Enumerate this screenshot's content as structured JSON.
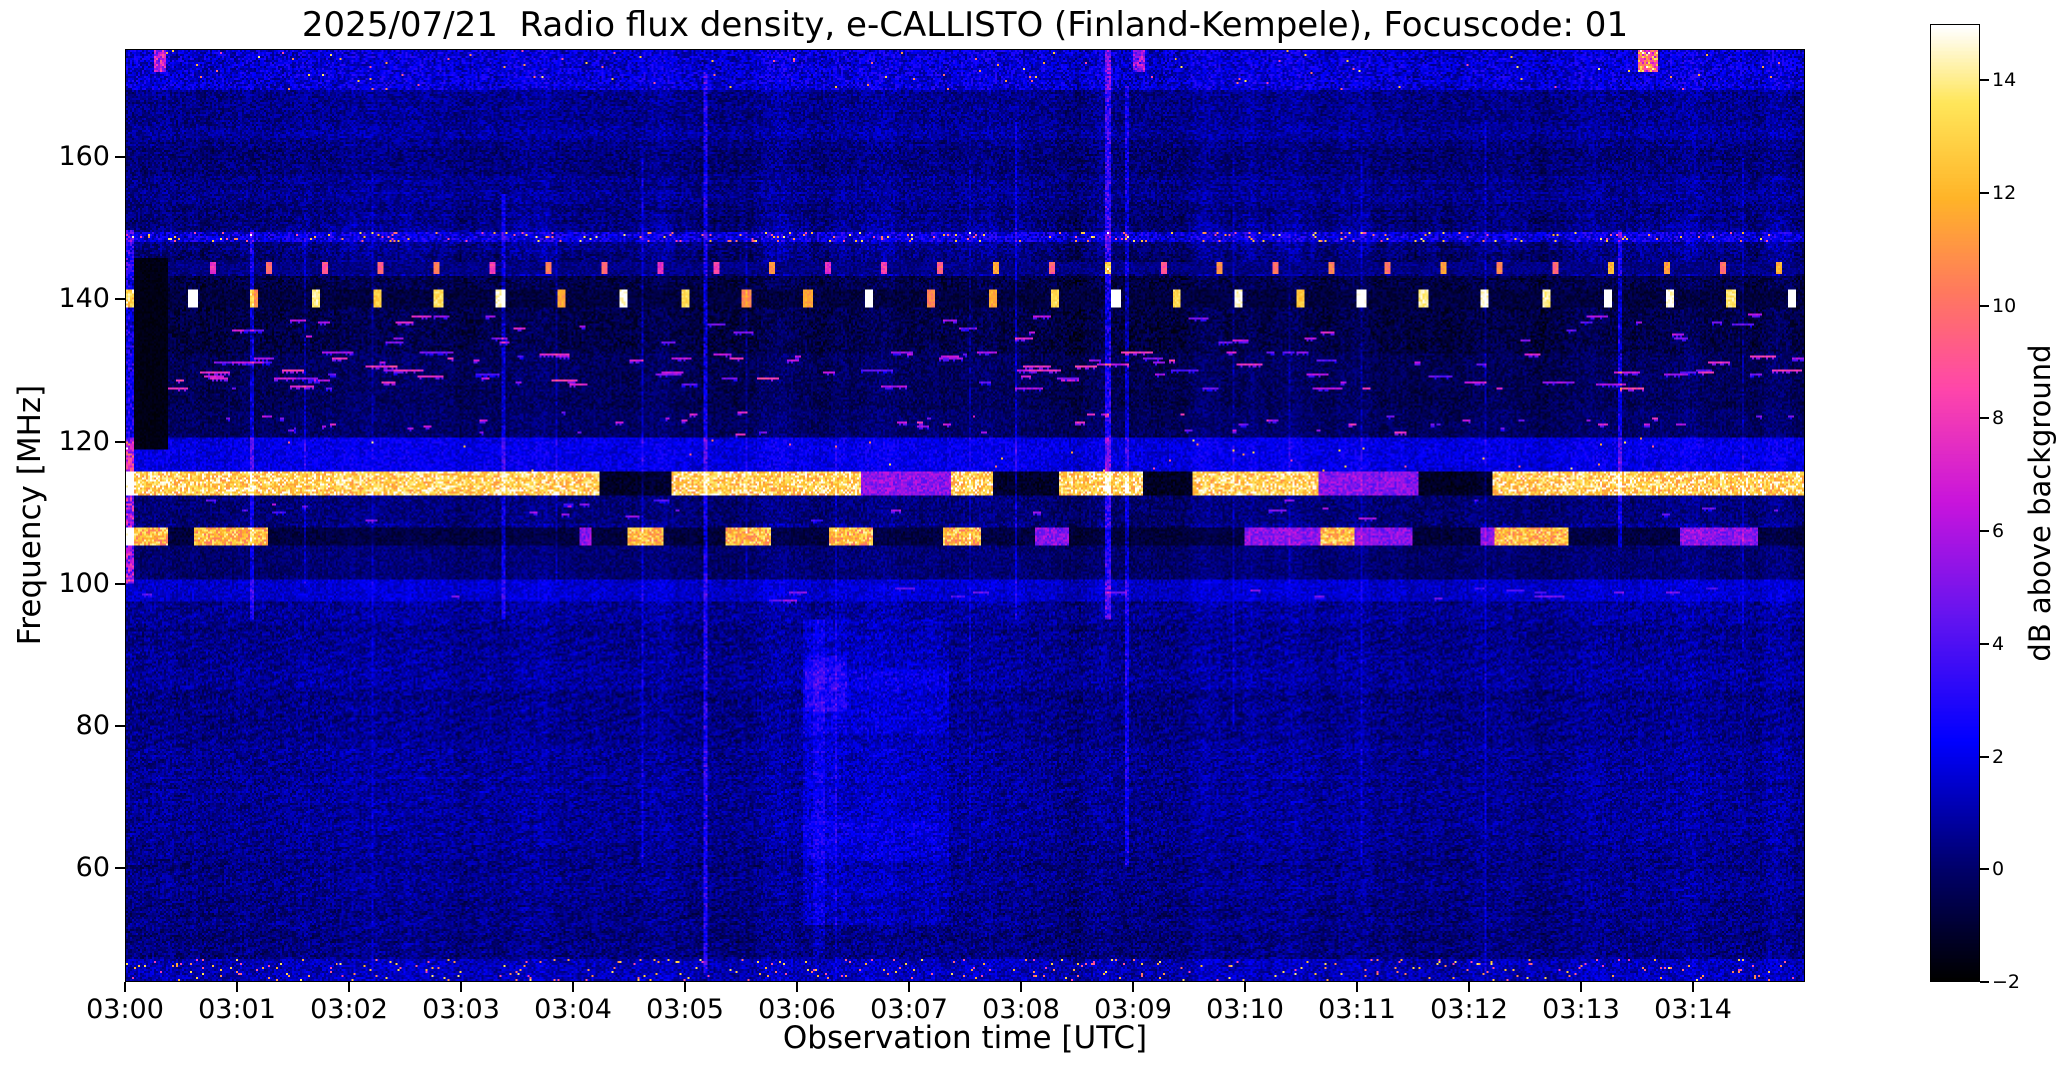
{
  "chart_data": {
    "type": "heatmap",
    "title": "2025/07/21  Radio flux density, e-CALLISTO (Finland-Kempele), Focuscode: 01",
    "xlabel": "Observation time [UTC]",
    "ylabel": "Frequency [MHz]",
    "colorbar_label": "dB above background",
    "x_ticks": [
      "03:00",
      "03:01",
      "03:02",
      "03:03",
      "03:04",
      "03:05",
      "03:06",
      "03:07",
      "03:08",
      "03:09",
      "03:10",
      "03:11",
      "03:12",
      "03:13",
      "03:14"
    ],
    "x_range_minutes": [
      0,
      15
    ],
    "y_ticks": [
      160,
      140,
      120,
      100,
      80,
      60
    ],
    "freq_range": [
      44,
      175.2
    ],
    "value_range": [
      -2,
      15
    ],
    "colorbar_ticks": [
      14,
      12,
      10,
      8,
      6,
      4,
      2,
      0,
      -2
    ],
    "colormap": [
      [
        0.0,
        "#000000"
      ],
      [
        0.12,
        "#00006e"
      ],
      [
        0.25,
        "#0000ff"
      ],
      [
        0.38,
        "#6414f0"
      ],
      [
        0.5,
        "#c814dc"
      ],
      [
        0.62,
        "#ff46aa"
      ],
      [
        0.72,
        "#ff785f"
      ],
      [
        0.82,
        "#ffb428"
      ],
      [
        0.92,
        "#ffe65a"
      ],
      [
        1.0,
        "#ffffff"
      ]
    ],
    "colors": {
      "figure_background": "#ffffff",
      "text": "#000000"
    },
    "background": {
      "level": -0.4,
      "noise_amp": 1.9
    },
    "rfi_bands": [
      {
        "f0": 169.5,
        "f1": 175.2,
        "mode": "noise",
        "level": 1.3,
        "amp": 2.8,
        "spark": 0.006
      },
      {
        "f0": 148.2,
        "f1": 149.6,
        "mode": "noise",
        "level": 1.5,
        "amp": 3.0,
        "spark": 0.05
      },
      {
        "f0": 143.6,
        "f1": 145.3,
        "mode": "periodic",
        "period": 0.5,
        "duty": 0.08,
        "phase": 0.25,
        "hi": 9,
        "lo": 0.3
      },
      {
        "f0": 132.5,
        "f1": 143.5,
        "mode": "dark",
        "level": -0.6,
        "amp": 1.8
      },
      {
        "f0": 138.9,
        "f1": 141.3,
        "mode": "periodic",
        "period": 0.55,
        "duty": 0.14,
        "phase": 0,
        "hi": 13,
        "lo": -0.9
      },
      {
        "f0": 134.0,
        "f1": 138.0,
        "mode": "dashes",
        "dashes": 40,
        "dash_len": [
          0.04,
          0.2
        ],
        "dash_hi": [
          3.5,
          7
        ]
      },
      {
        "f0": 124.5,
        "f1": 132.5,
        "mode": "dark",
        "level": -0.3,
        "amp": 1.6
      },
      {
        "f0": 127.5,
        "f1": 132.8,
        "mode": "dashes",
        "dashes": 110,
        "dash_len": [
          0.04,
          0.3
        ],
        "dash_hi": [
          3.5,
          8
        ]
      },
      {
        "f0": 120.7,
        "f1": 124.5,
        "mode": "dark",
        "level": -0.1,
        "amp": 1.5
      },
      {
        "f0": 121.0,
        "f1": 124.2,
        "mode": "dashes",
        "dashes": 55,
        "dash_len": [
          0.02,
          0.1
        ],
        "dash_hi": [
          3.5,
          7.5
        ]
      },
      {
        "f0": 115.9,
        "f1": 120.6,
        "mode": "noise",
        "level": 1.7,
        "amp": 1.7,
        "spark": 0.002
      },
      {
        "f0": 112.4,
        "f1": 115.8,
        "mode": "segments",
        "bright_prob": 0.55,
        "run_min": 8,
        "run_max": 55,
        "hi": 13.5,
        "lo": -1.4
      },
      {
        "f0": 108.6,
        "f1": 112.3,
        "mode": "dark",
        "level": 0.2,
        "amp": 1.7
      },
      {
        "f0": 109.0,
        "f1": 112.0,
        "mode": "dashes",
        "dashes": 25,
        "dash_len": [
          0.03,
          0.15
        ],
        "dash_hi": [
          3,
          5.5
        ]
      },
      {
        "f0": 105.4,
        "f1": 108.0,
        "mode": "segments",
        "bright_prob": 0.22,
        "run_min": 6,
        "run_max": 40,
        "hi": 12.5,
        "lo": -1.0
      },
      {
        "f0": 100.6,
        "f1": 105.3,
        "mode": "dark",
        "level": 0.1,
        "amp": 1.4
      },
      {
        "f0": 97.6,
        "f1": 100.5,
        "mode": "noise",
        "level": 1.3,
        "amp": 1.5
      },
      {
        "f0": 97.8,
        "f1": 99.5,
        "mode": "dashes",
        "dashes": 20,
        "dash_len": [
          0.05,
          0.2
        ],
        "dash_hi": [
          3,
          5
        ]
      },
      {
        "f0": 44.0,
        "f1": 47.0,
        "mode": "noise",
        "level": 0.9,
        "amp": 2.0,
        "spark": 0.03
      }
    ],
    "patches": [
      {
        "t0": 0.08,
        "t1": 0.38,
        "f0": 119,
        "f1": 146,
        "set": -1.6
      },
      {
        "t0": 6.05,
        "t1": 7.35,
        "f0": 52,
        "f1": 95,
        "add": 0.55
      },
      {
        "t0": 6.05,
        "t1": 7.35,
        "f0": 79,
        "f1": 88,
        "add": 0.5
      },
      {
        "t0": 6.05,
        "t1": 7.35,
        "f0": 61,
        "f1": 67,
        "add": 0.45
      },
      {
        "t0": 6.08,
        "t1": 6.45,
        "f0": 82,
        "f1": 90,
        "add": 0.9
      },
      {
        "t0": 6.05,
        "t1": 6.35,
        "f0": 52,
        "f1": 95,
        "add": 0.35
      }
    ],
    "bursts": [
      {
        "t": 0.04,
        "w": 0.08,
        "f0": 100,
        "f1": 120,
        "add": 6
      },
      {
        "t": 0.04,
        "w": 0.08,
        "f0": 120,
        "f1": 150,
        "add": 3
      },
      {
        "t": 0.3,
        "w": 0.1,
        "f0": 172,
        "f1": 175.2,
        "add": 5
      },
      {
        "t": 1.12,
        "w": 0.03,
        "f0": 95,
        "f1": 150,
        "add": 2.2
      },
      {
        "t": 1.6,
        "w": 0.02,
        "f0": 100,
        "f1": 150,
        "add": 1.2
      },
      {
        "t": 2.2,
        "w": 0.02,
        "f0": 45,
        "f1": 160,
        "add": 0.8
      },
      {
        "t": 3.37,
        "w": 0.03,
        "f0": 95,
        "f1": 155,
        "add": 2.0
      },
      {
        "t": 3.85,
        "w": 0.02,
        "f0": 100,
        "f1": 150,
        "add": 1.0
      },
      {
        "t": 4.62,
        "w": 0.02,
        "f0": 60,
        "f1": 160,
        "add": 1.3
      },
      {
        "t": 5.18,
        "w": 0.035,
        "f0": 45,
        "f1": 172,
        "add": 2.6
      },
      {
        "t": 5.55,
        "w": 0.02,
        "f0": 100,
        "f1": 150,
        "add": 1.1
      },
      {
        "t": 6.2,
        "w": 0.1,
        "f0": 47,
        "f1": 95,
        "add": 0.8
      },
      {
        "t": 6.35,
        "w": 0.02,
        "f0": 45,
        "f1": 120,
        "add": 0.9
      },
      {
        "t": 7.55,
        "w": 0.02,
        "f0": 60,
        "f1": 160,
        "add": 0.9
      },
      {
        "t": 7.95,
        "w": 0.025,
        "f0": 95,
        "f1": 165,
        "add": 1.5
      },
      {
        "t": 8.78,
        "w": 0.05,
        "f0": 95,
        "f1": 175.2,
        "add": 3.0
      },
      {
        "t": 8.95,
        "w": 0.03,
        "f0": 60,
        "f1": 170,
        "add": 2.0
      },
      {
        "t": 9.05,
        "w": 0.1,
        "f0": 172,
        "f1": 175.2,
        "add": 4
      },
      {
        "t": 9.9,
        "w": 0.02,
        "f0": 80,
        "f1": 160,
        "add": 1.0
      },
      {
        "t": 10.4,
        "w": 0.02,
        "f0": 100,
        "f1": 150,
        "add": 0.8
      },
      {
        "t": 11.05,
        "w": 0.02,
        "f0": 60,
        "f1": 160,
        "add": 1.0
      },
      {
        "t": 12.15,
        "w": 0.02,
        "f0": 45,
        "f1": 165,
        "add": 1.2
      },
      {
        "t": 13.35,
        "w": 0.035,
        "f0": 105,
        "f1": 150,
        "add": 2.4
      },
      {
        "t": 13.6,
        "w": 0.18,
        "f0": 172,
        "f1": 175.2,
        "add": 9
      },
      {
        "t": 14.45,
        "w": 0.02,
        "f0": 90,
        "f1": 160,
        "add": 1.0
      }
    ]
  }
}
